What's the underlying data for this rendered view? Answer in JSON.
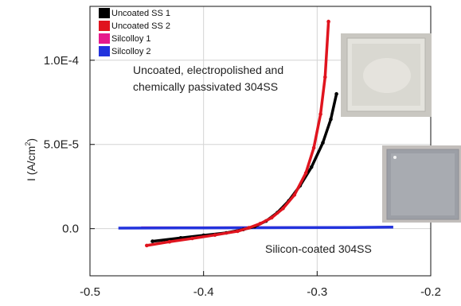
{
  "chart_data": {
    "type": "line",
    "xlim": [
      -0.5,
      -0.2
    ],
    "ylim": [
      -2.8e-05,
      0.000132
    ],
    "x_ticks": [
      -0.5,
      -0.4,
      -0.3,
      -0.2
    ],
    "x_tick_labels": [
      "-0.5",
      "-0.4",
      "-0.3",
      "-0.2"
    ],
    "y_ticks": [
      0,
      5e-05,
      0.0001
    ],
    "y_tick_labels": [
      "0.0",
      "5.0E-5",
      "1.0E-4"
    ],
    "ylabel": "I (A/cm",
    "ylabel_sup": "2",
    "ylabel_close": ")",
    "grid": true,
    "legend_position": "top-left",
    "series": [
      {
        "name": "Uncoated SS 1",
        "color": "#000000",
        "x": [
          -0.445,
          -0.42,
          -0.4,
          -0.38,
          -0.365,
          -0.355,
          -0.345,
          -0.335,
          -0.325,
          -0.315,
          -0.305,
          -0.295,
          -0.288,
          -0.283
        ],
        "y": [
          -7.5e-06,
          -5.5e-06,
          -4e-06,
          -2.5e-06,
          -5e-07,
          1.2e-06,
          4.5e-06,
          9.5e-06,
          1.65e-05,
          2.55e-05,
          3.65e-05,
          5.1e-05,
          6.5e-05,
          8e-05
        ]
      },
      {
        "name": "Uncoated SS 2",
        "color": "#e0141e",
        "x": [
          -0.45,
          -0.43,
          -0.41,
          -0.39,
          -0.37,
          -0.36,
          -0.35,
          -0.34,
          -0.33,
          -0.32,
          -0.31,
          -0.303,
          -0.297,
          -0.293,
          -0.29
        ],
        "y": [
          -1e-05,
          -7.8e-06,
          -5.8e-06,
          -3.8e-06,
          -1.5e-06,
          5e-07,
          3e-06,
          6.5e-06,
          1.2e-05,
          2e-05,
          3.3e-05,
          4.8e-05,
          6.8e-05,
          9e-05,
          0.000123
        ]
      },
      {
        "name": "Silcolloy 1",
        "color": "#e6198c",
        "x": [
          -0.455,
          -0.4,
          -0.35,
          -0.3,
          -0.25,
          -0.236
        ],
        "y": [
          6e-07,
          6e-07,
          7e-07,
          7e-07,
          8e-07,
          9e-07
        ]
      },
      {
        "name": "Silcolloy 2",
        "color": "#2233dd",
        "x": [
          -0.475,
          -0.42,
          -0.37,
          -0.32,
          -0.27,
          -0.233
        ],
        "y": [
          3e-07,
          4e-07,
          5e-07,
          6e-07,
          7e-07,
          9e-07
        ]
      }
    ],
    "annotations": [
      {
        "text": "Uncoated, electropolished and"
      },
      {
        "text": "chemically passivated 304SS"
      },
      {
        "text": "Silicon-coated 304SS"
      }
    ]
  }
}
